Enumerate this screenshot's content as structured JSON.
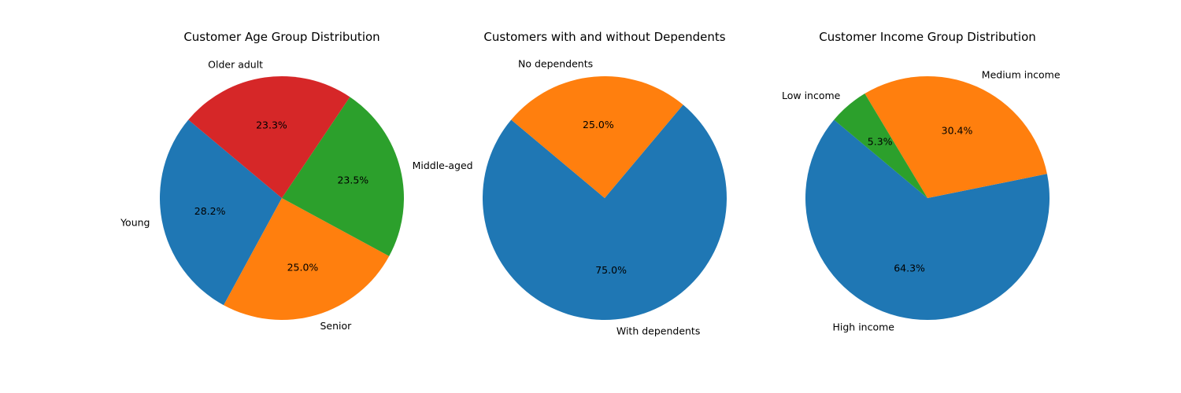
{
  "chart_data": [
    {
      "type": "pie",
      "title": "Customer Age Group Distribution",
      "labels": [
        "Young",
        "Senior",
        "Middle-aged",
        "Older adult"
      ],
      "values": [
        28.2,
        25.0,
        23.5,
        23.3
      ],
      "percent_labels": [
        "28.2%",
        "25.0%",
        "23.5%",
        "23.3%"
      ],
      "colors": [
        "#1f77b4",
        "#ff7f0e",
        "#2ca02c",
        "#d62728"
      ]
    },
    {
      "type": "pie",
      "title": "Customers with and without Dependents",
      "labels": [
        "With dependents",
        "No dependents"
      ],
      "values": [
        75.0,
        25.0
      ],
      "percent_labels": [
        "75.0%",
        "25.0%"
      ],
      "colors": [
        "#1f77b4",
        "#ff7f0e"
      ]
    },
    {
      "type": "pie",
      "title": "Customer Income Group Distribution",
      "labels": [
        "High income",
        "Medium income",
        "Low income"
      ],
      "values": [
        64.3,
        30.4,
        5.3
      ],
      "percent_labels": [
        "64.3%",
        "30.4%",
        "5.3%"
      ],
      "colors": [
        "#1f77b4",
        "#ff7f0e",
        "#2ca02c"
      ]
    }
  ]
}
